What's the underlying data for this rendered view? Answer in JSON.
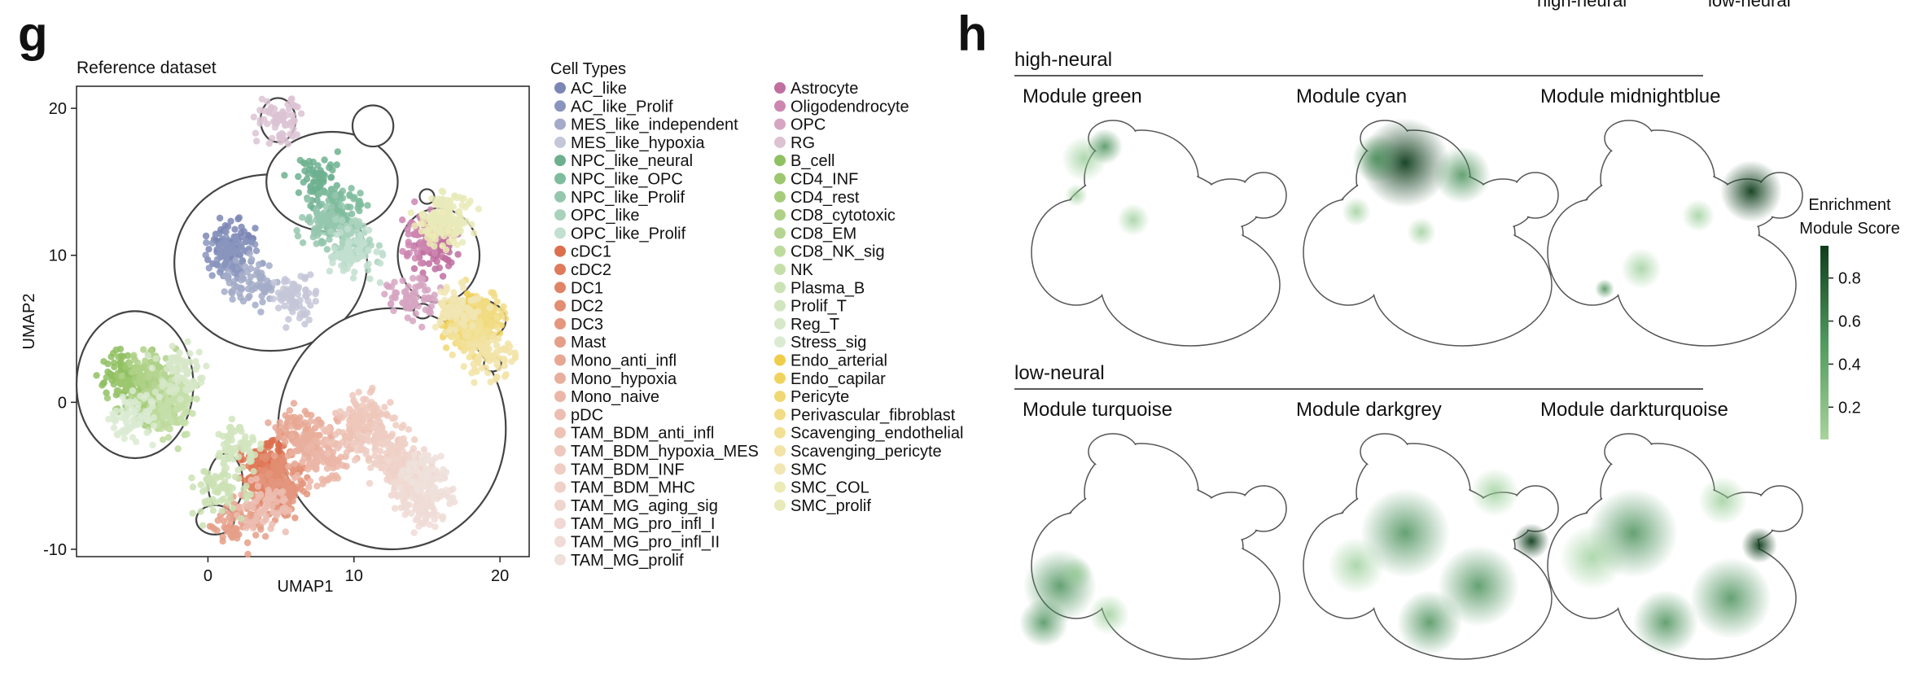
{
  "panel_g": {
    "letter": "g",
    "title": "Reference dataset",
    "xlabel": "UMAP1",
    "ylabel": "UMAP2",
    "xticks": [
      "0",
      "10",
      "20"
    ],
    "yticks": [
      "20",
      "10",
      "0",
      "-10"
    ],
    "legend_title": "Cell Types"
  },
  "panel_h": {
    "letter": "h",
    "top_labels": [
      "high-neural",
      "low-neural"
    ],
    "groups": [
      {
        "label": "high-neural",
        "modules": [
          "Module green",
          "Module cyan",
          "Module midnightblue"
        ]
      },
      {
        "label": "low-neural",
        "modules": [
          "Module turquoise",
          "Module darkgrey",
          "Module darkturquoise"
        ]
      }
    ],
    "colorbar_title_line1": "Enrichment",
    "colorbar_title_line2": "Module Score",
    "colorbar_ticks": [
      "0.8",
      "0.6",
      "0.4",
      "0.2"
    ],
    "colors": {
      "low": "#a8d49a",
      "high": "#0f3d1c"
    }
  },
  "chart_data": [
    {
      "type": "scatter",
      "title": "Reference dataset",
      "xlabel": "UMAP1",
      "ylabel": "UMAP2",
      "xlim": [
        -9,
        22
      ],
      "ylim": [
        -10.5,
        21.5
      ],
      "legend_title": "Cell Types",
      "legend_placement": "right",
      "grid": false,
      "series": [
        {
          "name": "AC_like",
          "color": "#7b86b5",
          "x": 1.5,
          "y": 11
        },
        {
          "name": "AC_like_Prolif",
          "color": "#8a95bd",
          "x": 1.5,
          "y": 10
        },
        {
          "name": "MES_like_independent",
          "color": "#a3abc8",
          "x": 3,
          "y": 8
        },
        {
          "name": "MES_like_hypoxia",
          "color": "#c4c7d8",
          "x": 6,
          "y": 7
        },
        {
          "name": "NPC_like_neural",
          "color": "#6db08f",
          "x": 7.5,
          "y": 15
        },
        {
          "name": "NPC_like_OPC",
          "color": "#7fbc9d",
          "x": 9,
          "y": 13
        },
        {
          "name": "NPC_like_Prolif",
          "color": "#95c7ae",
          "x": 8,
          "y": 12
        },
        {
          "name": "OPC_like",
          "color": "#a9d2bd",
          "x": 10,
          "y": 11
        },
        {
          "name": "OPC_like_Prolif",
          "color": "#c2dfd0",
          "x": 10,
          "y": 10
        },
        {
          "name": "cDC1",
          "color": "#dc6f4e",
          "x": 4,
          "y": -4
        },
        {
          "name": "cDC2",
          "color": "#df7a5b",
          "x": 4,
          "y": -5
        },
        {
          "name": "DC1",
          "color": "#e08466",
          "x": 4,
          "y": -6
        },
        {
          "name": "DC2",
          "color": "#e28e72",
          "x": 5,
          "y": -5
        },
        {
          "name": "DC3",
          "color": "#e4977e",
          "x": 5,
          "y": -6
        },
        {
          "name": "Mast",
          "color": "#e59f88",
          "x": 2,
          "y": -8
        },
        {
          "name": "Mono_anti_infl",
          "color": "#e7a793",
          "x": 6,
          "y": -2
        },
        {
          "name": "Mono_hypoxia",
          "color": "#e9af9e",
          "x": 7,
          "y": -3
        },
        {
          "name": "Mono_naive",
          "color": "#ebb6a7",
          "x": 8,
          "y": -4
        },
        {
          "name": "pDC",
          "color": "#ecbdb0",
          "x": 4,
          "y": -7
        },
        {
          "name": "TAM_BDM_anti_infl",
          "color": "#edc2b5",
          "x": 10,
          "y": -2
        },
        {
          "name": "TAM_BDM_hypoxia_MES",
          "color": "#eec8bc",
          "x": 11,
          "y": -1
        },
        {
          "name": "TAM_BDM_INF",
          "color": "#efcdc2",
          "x": 12,
          "y": -3
        },
        {
          "name": "TAM_BDM_MHC",
          "color": "#efd1c8",
          "x": 13,
          "y": -4
        },
        {
          "name": "TAM_MG_aging_sig",
          "color": "#f0d5cd",
          "x": 14,
          "y": -5
        },
        {
          "name": "TAM_MG_pro_infl_I",
          "color": "#f0d9d2",
          "x": 14,
          "y": -6
        },
        {
          "name": "TAM_MG_pro_infl_II",
          "color": "#f0dcd7",
          "x": 15,
          "y": -7
        },
        {
          "name": "TAM_MG_prolif",
          "color": "#efe0db",
          "x": 15,
          "y": -5
        },
        {
          "name": "Astrocyte",
          "color": "#c06fa0",
          "x": 15.5,
          "y": 10.5
        },
        {
          "name": "Oligodendrocyte",
          "color": "#cc86b0",
          "x": 15,
          "y": 11.5
        },
        {
          "name": "OPC",
          "color": "#d6a5c2",
          "x": 14,
          "y": 7
        },
        {
          "name": "RG",
          "color": "#dcc3d3",
          "x": 5,
          "y": 19
        },
        {
          "name": "B_cell",
          "color": "#8fc062",
          "x": -6,
          "y": 2
        },
        {
          "name": "CD4_INF",
          "color": "#9cc76f",
          "x": -5,
          "y": 1
        },
        {
          "name": "CD4_rest",
          "color": "#a5cc7b",
          "x": -4,
          "y": 0
        },
        {
          "name": "CD8_cytotoxic",
          "color": "#aed187",
          "x": -4,
          "y": 2
        },
        {
          "name": "CD8_EM",
          "color": "#b6d592",
          "x": -3,
          "y": 1
        },
        {
          "name": "CD8_NK_sig",
          "color": "#bedb9e",
          "x": -3,
          "y": -1
        },
        {
          "name": "NK",
          "color": "#c5dfaa",
          "x": -2,
          "y": 0
        },
        {
          "name": "Plasma_B",
          "color": "#cbe2b4",
          "x": 1,
          "y": -6
        },
        {
          "name": "Prolif_T",
          "color": "#d1e5be",
          "x": 2,
          "y": -3
        },
        {
          "name": "Reg_T",
          "color": "#d6e8c8",
          "x": -2,
          "y": 2
        },
        {
          "name": "Stress_sig",
          "color": "#dbebd2",
          "x": -5,
          "y": -1
        },
        {
          "name": "Endo_arterial",
          "color": "#efcd4a",
          "x": 18,
          "y": 6
        },
        {
          "name": "Endo_capilar",
          "color": "#f0d35f",
          "x": 18.5,
          "y": 5.5
        },
        {
          "name": "Pericyte",
          "color": "#f1d872",
          "x": 17.5,
          "y": 5
        },
        {
          "name": "Perivascular_fibroblast",
          "color": "#f2dc84",
          "x": 19,
          "y": 6
        },
        {
          "name": "Scavenging_endothelial",
          "color": "#f2e096",
          "x": 18,
          "y": 4.5
        },
        {
          "name": "Scavenging_pericyte",
          "color": "#f2e3a6",
          "x": 19.5,
          "y": 3
        },
        {
          "name": "SMC",
          "color": "#f1e6b4",
          "x": 17,
          "y": 6.5
        },
        {
          "name": "SMC_COL",
          "color": "#ecebb6",
          "x": 16,
          "y": 12
        },
        {
          "name": "SMC_prolif",
          "color": "#e9eaba",
          "x": 16.5,
          "y": 13
        }
      ]
    },
    {
      "type": "heatmap",
      "title": "",
      "panels": [
        "Module green",
        "Module cyan",
        "Module midnightblue",
        "Module turquoise",
        "Module darkgrey",
        "Module darkturquoise"
      ],
      "colorbar_label": "Enrichment Module Score",
      "colorbar_ticks": [
        0.2,
        0.4,
        0.6,
        0.8
      ],
      "colorbar_range": [
        0.05,
        0.95
      ]
    }
  ]
}
